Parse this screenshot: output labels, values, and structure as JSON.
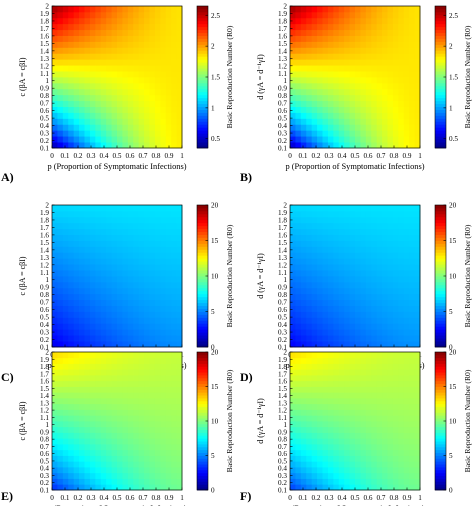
{
  "figure": {
    "colormap": "jet",
    "shared_x_ticks": [
      "0",
      "0.1",
      "0.2",
      "0.3",
      "0.4",
      "0.5",
      "0.6",
      "0.7",
      "0.8",
      "0.9",
      "1"
    ],
    "shared_y_ticks": [
      "0.1",
      "0.2",
      "0.3",
      "0.4",
      "0.5",
      "0.6",
      "0.7",
      "0.8",
      "0.9",
      "1",
      "1.1",
      "1.2",
      "1.3",
      "1.4",
      "1.5",
      "1.6",
      "1.7",
      "1.8",
      "1.9",
      "2"
    ]
  },
  "chart_data": [
    {
      "type": "heatmap",
      "panel_label": "A)",
      "xlabel": "p (Proportion of Symptomatic Infections)",
      "ylabel": "c (βA = cβI)",
      "colorbar_label": "Basic Reproduction Number (R0)",
      "colorbar_ticks": [
        "0.5",
        "1",
        "1.5",
        "2",
        "2.5"
      ],
      "clim": [
        0.35,
        2.65
      ],
      "xlim": [
        0,
        1
      ],
      "ylim": [
        0.1,
        2
      ],
      "surface": {
        "at_p0_c0.1": 0.38,
        "at_p1_c0.1": 1.82,
        "at_p0_c2": 2.6,
        "at_p1_c2": 1.85
      },
      "grid": false
    },
    {
      "type": "heatmap",
      "panel_label": "B)",
      "xlabel": "p (Proportion of Symptomatic Infections)",
      "ylabel": "d (γA = d⁻¹γI)",
      "colorbar_label": "Basic Reproduction Number (R0)",
      "colorbar_ticks": [
        "0.5",
        "1",
        "1.5",
        "2",
        "2.5"
      ],
      "clim": [
        0.35,
        2.65
      ],
      "xlim": [
        0,
        1
      ],
      "ylim": [
        0.1,
        2
      ],
      "surface": {
        "at_p0_c0.1": 0.42,
        "at_p1_c0.1": 1.82,
        "at_p0_c2": 2.6,
        "at_p1_c2": 1.85
      },
      "grid": false
    },
    {
      "type": "heatmap",
      "panel_label": "C)",
      "xlabel": "p (Proportion of Symptomatic Infections)",
      "ylabel": "c (βA = cβI)",
      "colorbar_label": "Basic Reproduction Number (R0)",
      "colorbar_ticks": [
        "0",
        "5",
        "10",
        "15",
        "20"
      ],
      "clim": [
        0,
        20
      ],
      "xlim": [
        0,
        1
      ],
      "ylim": [
        0.1,
        2
      ],
      "surface": {
        "at_p0_c0.1": 2.0,
        "at_p1_c0.1": 5.2,
        "at_p0_c2": 6.8,
        "at_p1_c2": 7.0
      },
      "grid": false
    },
    {
      "type": "heatmap",
      "panel_label": "D)",
      "xlabel": "p (Proportion of Symptomatic Infections)",
      "ylabel": "d (γA = d⁻¹γI)",
      "colorbar_label": "Basic Reproduction Number (R0)",
      "colorbar_ticks": [
        "0",
        "5",
        "10",
        "15",
        "20"
      ],
      "clim": [
        0,
        20
      ],
      "xlim": [
        0,
        1
      ],
      "ylim": [
        0.1,
        2
      ],
      "surface": {
        "at_p0_c0.1": 2.3,
        "at_p1_c0.1": 5.3,
        "at_p0_c2": 6.8,
        "at_p1_c2": 7.0
      },
      "grid": false
    },
    {
      "type": "heatmap",
      "panel_label": "E)",
      "xlabel": "p (Proportion of Symptomatic Infections)",
      "ylabel": "c (βA = cβI)",
      "colorbar_label": "Basic Reproduction Number (R0)",
      "colorbar_ticks": [
        "0",
        "5",
        "10",
        "15",
        "20"
      ],
      "clim": [
        0,
        20
      ],
      "xlim": [
        0,
        1
      ],
      "ylim": [
        0.1,
        2
      ],
      "surface": {
        "at_p0_c0.1": 3.0,
        "at_p1_c0.1": 9.6,
        "at_p0_c2": 13.3,
        "at_p1_c2": 11.4
      },
      "grid": false
    },
    {
      "type": "heatmap",
      "panel_label": "F)",
      "xlabel": "p (Proportion of Symptomatic Infections)",
      "ylabel": "d (γA = d⁻¹γI)",
      "colorbar_label": "Basic Reproduction Number (R0)",
      "colorbar_ticks": [
        "0",
        "5",
        "10",
        "15",
        "20"
      ],
      "clim": [
        0,
        20
      ],
      "xlim": [
        0,
        1
      ],
      "ylim": [
        0.1,
        2
      ],
      "surface": {
        "at_p0_c0.1": 3.4,
        "at_p1_c0.1": 9.6,
        "at_p0_c2": 13.2,
        "at_p1_c2": 11.4
      },
      "grid": false
    }
  ]
}
